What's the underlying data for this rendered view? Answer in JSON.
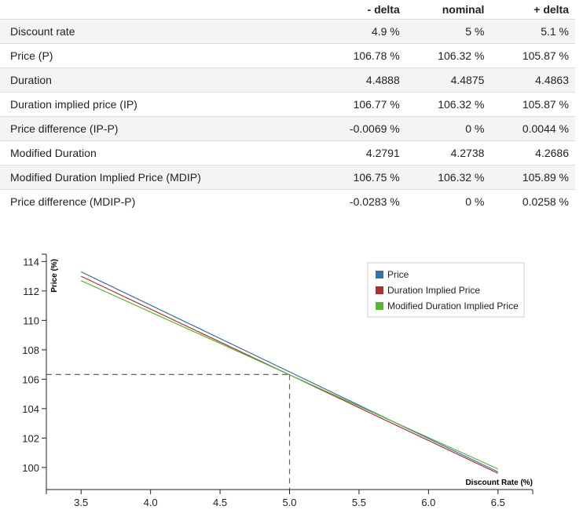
{
  "table": {
    "headers": [
      "",
      "- delta",
      "nominal",
      "+ delta"
    ],
    "rows": [
      {
        "label": "Discount rate",
        "minus": "4.9 %",
        "nominal": "5 %",
        "plus": "5.1 %"
      },
      {
        "label": "Price (P)",
        "minus": "106.78 %",
        "nominal": "106.32 %",
        "plus": "105.87 %"
      },
      {
        "label": "Duration",
        "minus": "4.4888",
        "nominal": "4.4875",
        "plus": "4.4863"
      },
      {
        "label": "Duration implied price (IP)",
        "minus": "106.77 %",
        "nominal": "106.32 %",
        "plus": "105.87 %"
      },
      {
        "label": "Price difference (IP-P)",
        "minus": "-0.0069 %",
        "nominal": "0 %",
        "plus": "0.0044 %"
      },
      {
        "label": "Modified Duration",
        "minus": "4.2791",
        "nominal": "4.2738",
        "plus": "4.2686"
      },
      {
        "label": "Modified Duration Implied Price (MDIP)",
        "minus": "106.75 %",
        "nominal": "106.32 %",
        "plus": "105.89 %"
      },
      {
        "label": "Price difference (MDIP-P)",
        "minus": "-0.0283 %",
        "nominal": "0 %",
        "plus": "0.0258 %"
      }
    ]
  },
  "chart_data": {
    "type": "line",
    "xlabel": "Discount Rate (%)",
    "ylabel": "Price (%)",
    "xlim": [
      3.25,
      6.75
    ],
    "ylim": [
      98.5,
      114.5
    ],
    "x_ticks": [
      3.5,
      4.0,
      4.5,
      5.0,
      5.5,
      6.0,
      6.5
    ],
    "x_tick_labels": [
      "3.5",
      "4.0",
      "4.5",
      "5.0",
      "5.5",
      "6.0",
      "6.5"
    ],
    "y_ticks": [
      100,
      102,
      104,
      106,
      108,
      110,
      112,
      114
    ],
    "y_tick_labels": [
      "100",
      "102",
      "104",
      "106",
      "108",
      "110",
      "112",
      "114"
    ],
    "legend_position": "top-right",
    "reference_point": {
      "x": 5.0,
      "y": 106.32
    },
    "series": [
      {
        "name": "Price",
        "color": "#3a6ea5",
        "x": [
          3.5,
          6.5
        ],
        "y": [
          113.3,
          99.7
        ]
      },
      {
        "name": "Duration Implied Price",
        "color": "#a83232",
        "x": [
          3.5,
          6.5
        ],
        "y": [
          113.0,
          99.6
        ]
      },
      {
        "name": "Modified Duration Implied Price",
        "color": "#5bb531",
        "x": [
          3.5,
          6.5
        ],
        "y": [
          112.7,
          99.9
        ]
      }
    ],
    "grid": false
  }
}
